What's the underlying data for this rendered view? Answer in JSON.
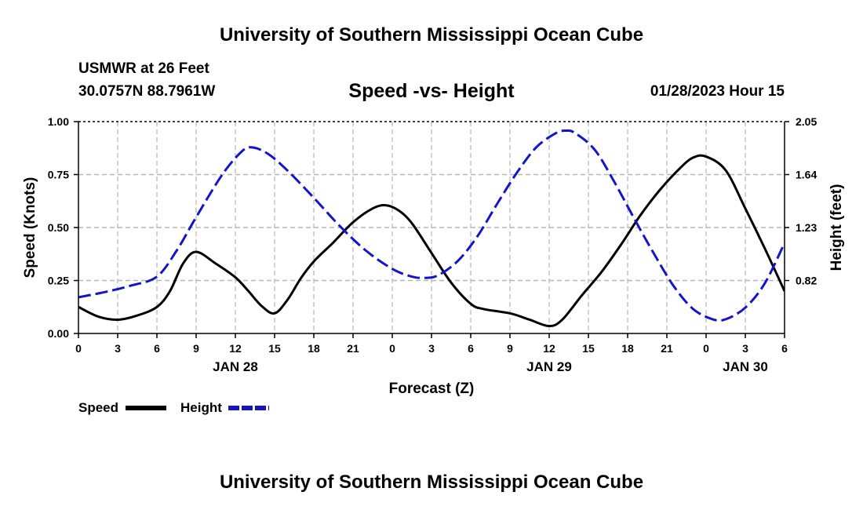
{
  "page": {
    "title_top": "University of Southern Mississippi Ocean Cube",
    "title_bottom": "University of Southern Mississippi Ocean Cube",
    "station": "USMWR at 26 Feet",
    "coords": "30.0757N  88.7961W",
    "date": "01/28/2023 Hour 15"
  },
  "chart_data": {
    "type": "line",
    "title": "Speed -vs- Height",
    "xlabel": "Forecast (Z)",
    "ylabel_left": "Speed (Knots)",
    "ylabel_right": "Height (feet)",
    "xlim": [
      0,
      54
    ],
    "ylim_left": [
      0,
      1.0
    ],
    "ylim_right": [
      0.41,
      2.05
    ],
    "grid": true,
    "x_ticks": [
      {
        "x": 0,
        "label": "0"
      },
      {
        "x": 3,
        "label": "3"
      },
      {
        "x": 6,
        "label": "6"
      },
      {
        "x": 9,
        "label": "9"
      },
      {
        "x": 12,
        "label": "12"
      },
      {
        "x": 15,
        "label": "15"
      },
      {
        "x": 18,
        "label": "18"
      },
      {
        "x": 21,
        "label": "21"
      },
      {
        "x": 24,
        "label": "0"
      },
      {
        "x": 27,
        "label": "3"
      },
      {
        "x": 30,
        "label": "6"
      },
      {
        "x": 33,
        "label": "9"
      },
      {
        "x": 36,
        "label": "12"
      },
      {
        "x": 39,
        "label": "15"
      },
      {
        "x": 42,
        "label": "18"
      },
      {
        "x": 45,
        "label": "21"
      },
      {
        "x": 48,
        "label": "0"
      },
      {
        "x": 51,
        "label": "3"
      },
      {
        "x": 54,
        "label": "6"
      }
    ],
    "date_labels": [
      {
        "x": 12,
        "label": "JAN 28"
      },
      {
        "x": 36,
        "label": "JAN 29"
      },
      {
        "x": 51,
        "label": "JAN 30"
      }
    ],
    "y_ticks_left": [
      {
        "v": 0.0,
        "label": "0.00"
      },
      {
        "v": 0.25,
        "label": "0.25"
      },
      {
        "v": 0.5,
        "label": "0.50"
      },
      {
        "v": 0.75,
        "label": "0.75"
      },
      {
        "v": 1.0,
        "label": "1.00"
      }
    ],
    "y_ticks_right": [
      {
        "v": 0.82,
        "label": "0.82"
      },
      {
        "v": 1.23,
        "label": "1.23"
      },
      {
        "v": 1.64,
        "label": "1.64"
      },
      {
        "v": 2.05,
        "label": "2.05"
      }
    ],
    "series": [
      {
        "name": "Speed",
        "axis": "left",
        "color": "#000000",
        "dash": "solid",
        "x": [
          0,
          1.5,
          3,
          4.5,
          6,
          7,
          8,
          9,
          10.5,
          12,
          13,
          14,
          15,
          16,
          17,
          18,
          19.5,
          21,
          22.5,
          23.5,
          24.5,
          25.5,
          27,
          28.5,
          30,
          31,
          33,
          34.5,
          36,
          37,
          38.5,
          40,
          41.5,
          43,
          44.5,
          46,
          47,
          48,
          49.5,
          51,
          52.5,
          54
        ],
        "y": [
          0.125,
          0.08,
          0.065,
          0.085,
          0.125,
          0.2,
          0.33,
          0.385,
          0.33,
          0.265,
          0.2,
          0.13,
          0.095,
          0.16,
          0.26,
          0.34,
          0.43,
          0.525,
          0.59,
          0.605,
          0.58,
          0.52,
          0.38,
          0.24,
          0.14,
          0.115,
          0.095,
          0.065,
          0.035,
          0.065,
          0.18,
          0.29,
          0.42,
          0.56,
          0.68,
          0.78,
          0.83,
          0.835,
          0.77,
          0.59,
          0.4,
          0.2
        ]
      },
      {
        "name": "Height",
        "axis": "right",
        "color": "#1515c8",
        "dash": "dashed",
        "x": [
          0,
          2,
          4,
          6,
          7.5,
          9,
          11,
          12.5,
          13.3,
          14.5,
          16,
          18,
          20,
          22,
          24,
          25.5,
          26.5,
          27.5,
          29,
          30.5,
          32,
          33.5,
          35,
          36.5,
          37.3,
          38,
          39.5,
          41,
          42.5,
          44,
          45.5,
          47,
          48.5,
          49.5,
          51,
          52.5,
          54
        ],
        "y": [
          0.69,
          0.73,
          0.78,
          0.85,
          1.05,
          1.31,
          1.64,
          1.82,
          1.85,
          1.8,
          1.67,
          1.46,
          1.24,
          1.05,
          0.91,
          0.85,
          0.84,
          0.86,
          0.97,
          1.16,
          1.41,
          1.65,
          1.85,
          1.96,
          1.98,
          1.96,
          1.83,
          1.58,
          1.3,
          1.03,
          0.78,
          0.6,
          0.52,
          0.52,
          0.61,
          0.8,
          1.11
        ]
      }
    ],
    "legend": {
      "placement": "bottom-left",
      "items": [
        "Speed",
        "Height"
      ]
    }
  }
}
